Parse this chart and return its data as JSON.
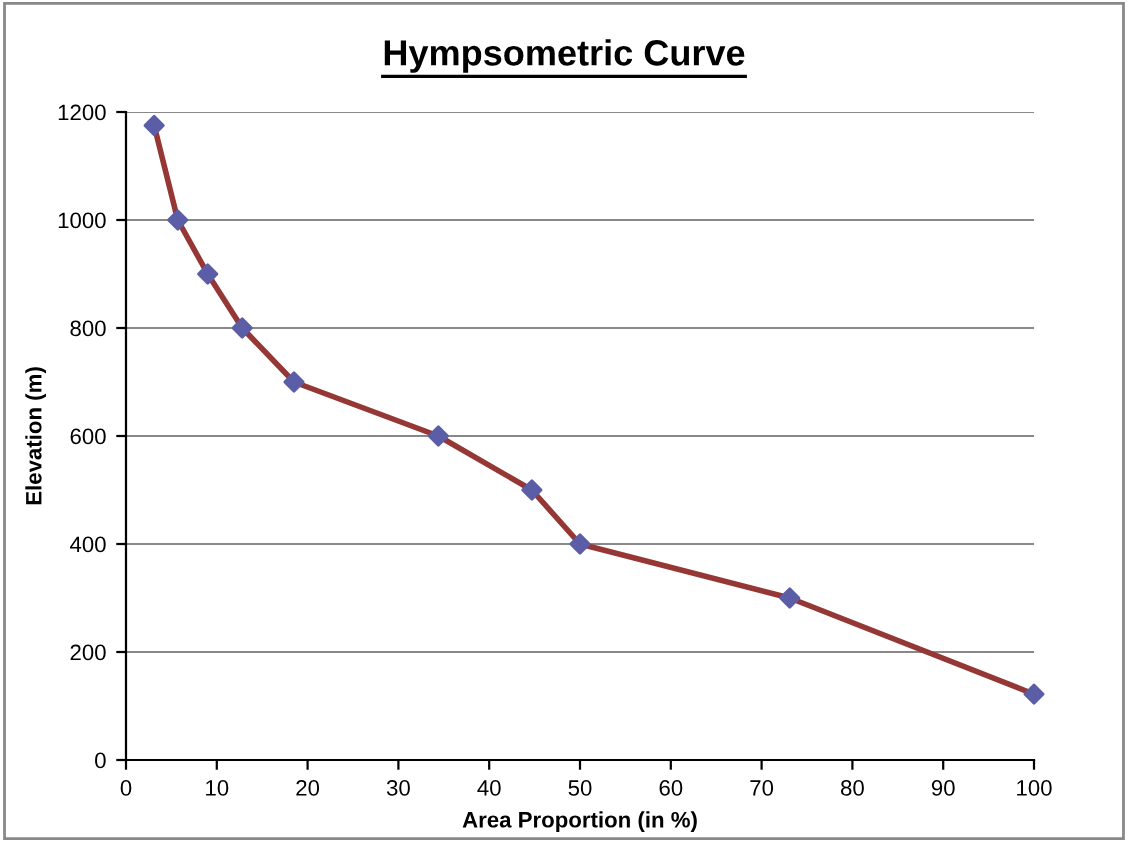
{
  "chart_data": {
    "type": "line",
    "title": "Hympsometric Curve",
    "xlabel": "Area Proportion (in %)",
    "ylabel": "Elevation (m)",
    "series": [
      {
        "color": "#953735",
        "colors": [
          "#5b5ea6",
          "#5b5ea6",
          "#5b5ea6",
          "#5b5ea6",
          "#5b5ea6",
          "#5b5ea6",
          "#5b5ea6",
          "#5b5ea6",
          "#5b5ea6",
          "#5b5ea6"
        ],
        "x": [
          3.1,
          5.7,
          9.0,
          12.8,
          18.5,
          34.4,
          44.7,
          50.0,
          73.1,
          100
        ],
        "values": [
          1175,
          1000,
          900,
          800,
          700,
          600,
          500,
          400,
          300,
          122
        ]
      }
    ],
    "xlim": [
      0,
      100
    ],
    "xticks": [
      0,
      10,
      20,
      30,
      40,
      50,
      60,
      70,
      80,
      90,
      100
    ],
    "ylim": [
      0,
      1200
    ],
    "yticks": [
      0,
      200,
      400,
      600,
      800,
      1000,
      1200
    ],
    "grid": "y",
    "marker": "diamond",
    "line_style": "solid",
    "legend": false
  }
}
